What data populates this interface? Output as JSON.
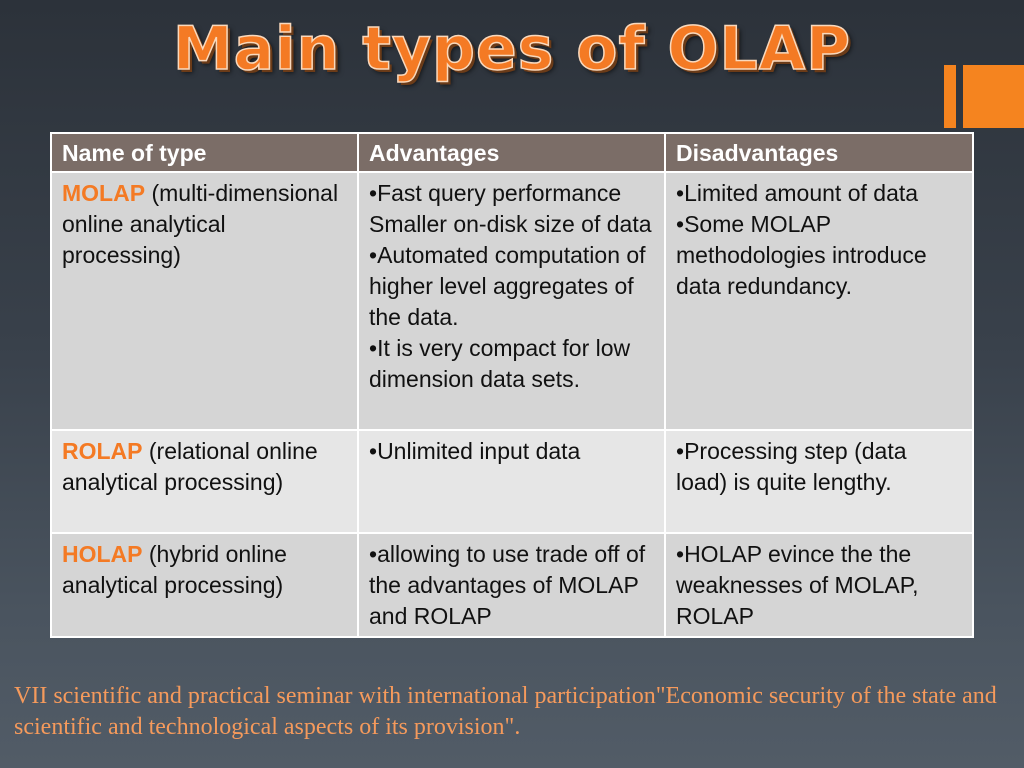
{
  "slide": {
    "title": "Main types of OLAP",
    "footer": "VII scientific and practical seminar with international participation\"Economic security of the state and scientific and technological aspects of its provision\"."
  },
  "colors": {
    "accent": "#f47a24",
    "header_bg": "#7b6d67",
    "row_bg_dark": "#d5d5d5",
    "row_bg_light": "#e6e6e6",
    "footer_text": "#f59a5c"
  },
  "table": {
    "headers": [
      "Name of type",
      "Advantages",
      "Disadvantages"
    ],
    "rows": [
      {
        "name": "MOLAP",
        "name_rest": " (multi-dimensional online analytical processing)",
        "advantages": [
          "Fast query performance Smaller on-disk size of data",
          "Automated computation of higher level aggregates of the data.",
          "It is very compact for low dimension data sets."
        ],
        "disadvantages": [
          "Limited amount of data",
          "Some MOLAP methodologies introduce data redundancy."
        ]
      },
      {
        "name": "ROLAP",
        "name_rest": " (relational online analytical processing)",
        "advantages": [
          "Unlimited input data"
        ],
        "disadvantages": [
          "Processing step (data load) is quite lengthy."
        ]
      },
      {
        "name": "HOLAP",
        "name_rest": " (hybrid online analytical processing)",
        "advantages": [
          "allowing to use trade off of the advantages of MOLAP and ROLAP"
        ],
        "disadvantages": [
          "HOLAP  evince the the weaknesses of MOLAP, ROLAP"
        ]
      }
    ]
  }
}
